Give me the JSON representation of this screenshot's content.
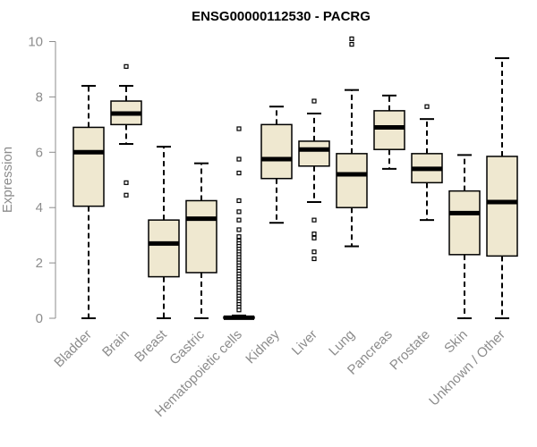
{
  "chart_data": {
    "type": "boxplot",
    "title": "ENSG00000112530 - PACRG",
    "xlabel": "",
    "ylabel": "Expression",
    "ylim": [
      0,
      10.5
    ],
    "yticks": [
      0,
      2,
      4,
      6,
      8,
      10
    ],
    "ytick_labels": [
      "0",
      "2",
      "4",
      "6",
      "8",
      "10"
    ],
    "colors": {
      "box_fill": "#efe8d0",
      "stroke": "#000000",
      "axis": "#8c8c8c"
    },
    "categories": [
      "Bladder",
      "Brain",
      "Breast",
      "Gastric",
      "Hematopoietic cells",
      "Kidney",
      "Liver",
      "Lung",
      "Pancreas",
      "Prostate",
      "Skin",
      "Unknown / Other"
    ],
    "boxes": [
      {
        "name": "Bladder",
        "whisker_low": 0.0,
        "q1": 4.05,
        "median": 6.0,
        "q3": 6.9,
        "whisker_high": 8.4,
        "outliers": []
      },
      {
        "name": "Brain",
        "whisker_low": 6.3,
        "q1": 7.0,
        "median": 7.4,
        "q3": 7.85,
        "whisker_high": 8.4,
        "outliers": [
          9.1,
          4.9,
          4.45
        ]
      },
      {
        "name": "Breast",
        "whisker_low": 0.0,
        "q1": 1.5,
        "median": 2.7,
        "q3": 3.55,
        "whisker_high": 6.2,
        "outliers": []
      },
      {
        "name": "Gastric",
        "whisker_low": 0.0,
        "q1": 1.65,
        "median": 3.6,
        "q3": 4.25,
        "whisker_high": 5.6,
        "outliers": []
      },
      {
        "name": "Hematopoietic cells",
        "whisker_low": 0.0,
        "q1": 0.0,
        "median": 0.02,
        "q3": 0.05,
        "whisker_high": 0.1,
        "outliers": [
          6.85,
          5.75,
          5.25,
          4.25,
          3.85,
          3.55,
          3.2,
          2.95,
          2.8,
          2.7,
          2.6,
          2.5,
          2.4,
          2.3,
          2.2,
          2.1,
          2.0,
          1.9,
          1.8,
          1.7,
          1.6,
          1.5,
          1.4,
          1.3,
          1.2,
          1.1,
          1.0,
          0.9,
          0.8,
          0.7,
          0.6,
          0.5,
          0.4,
          0.3
        ]
      },
      {
        "name": "Kidney",
        "whisker_low": 3.45,
        "q1": 5.05,
        "median": 5.75,
        "q3": 7.0,
        "whisker_high": 7.65,
        "outliers": []
      },
      {
        "name": "Liver",
        "whisker_low": 4.2,
        "q1": 5.5,
        "median": 6.1,
        "q3": 6.4,
        "whisker_high": 7.4,
        "outliers": [
          7.85,
          3.55,
          3.05,
          2.9,
          2.4,
          2.15
        ]
      },
      {
        "name": "Lung",
        "whisker_low": 2.6,
        "q1": 4.0,
        "median": 5.2,
        "q3": 5.95,
        "whisker_high": 8.25,
        "outliers": [
          10.1,
          9.9
        ]
      },
      {
        "name": "Pancreas",
        "whisker_low": 5.4,
        "q1": 6.1,
        "median": 6.9,
        "q3": 7.5,
        "whisker_high": 8.05,
        "outliers": []
      },
      {
        "name": "Prostate",
        "whisker_low": 3.55,
        "q1": 4.9,
        "median": 5.4,
        "q3": 5.95,
        "whisker_high": 7.2,
        "outliers": [
          7.65
        ]
      },
      {
        "name": "Skin",
        "whisker_low": 0.0,
        "q1": 2.3,
        "median": 3.8,
        "q3": 4.6,
        "whisker_high": 5.9,
        "outliers": []
      },
      {
        "name": "Unknown / Other",
        "whisker_low": 0.0,
        "q1": 2.25,
        "median": 4.2,
        "q3": 5.85,
        "whisker_high": 9.4,
        "outliers": []
      }
    ]
  }
}
